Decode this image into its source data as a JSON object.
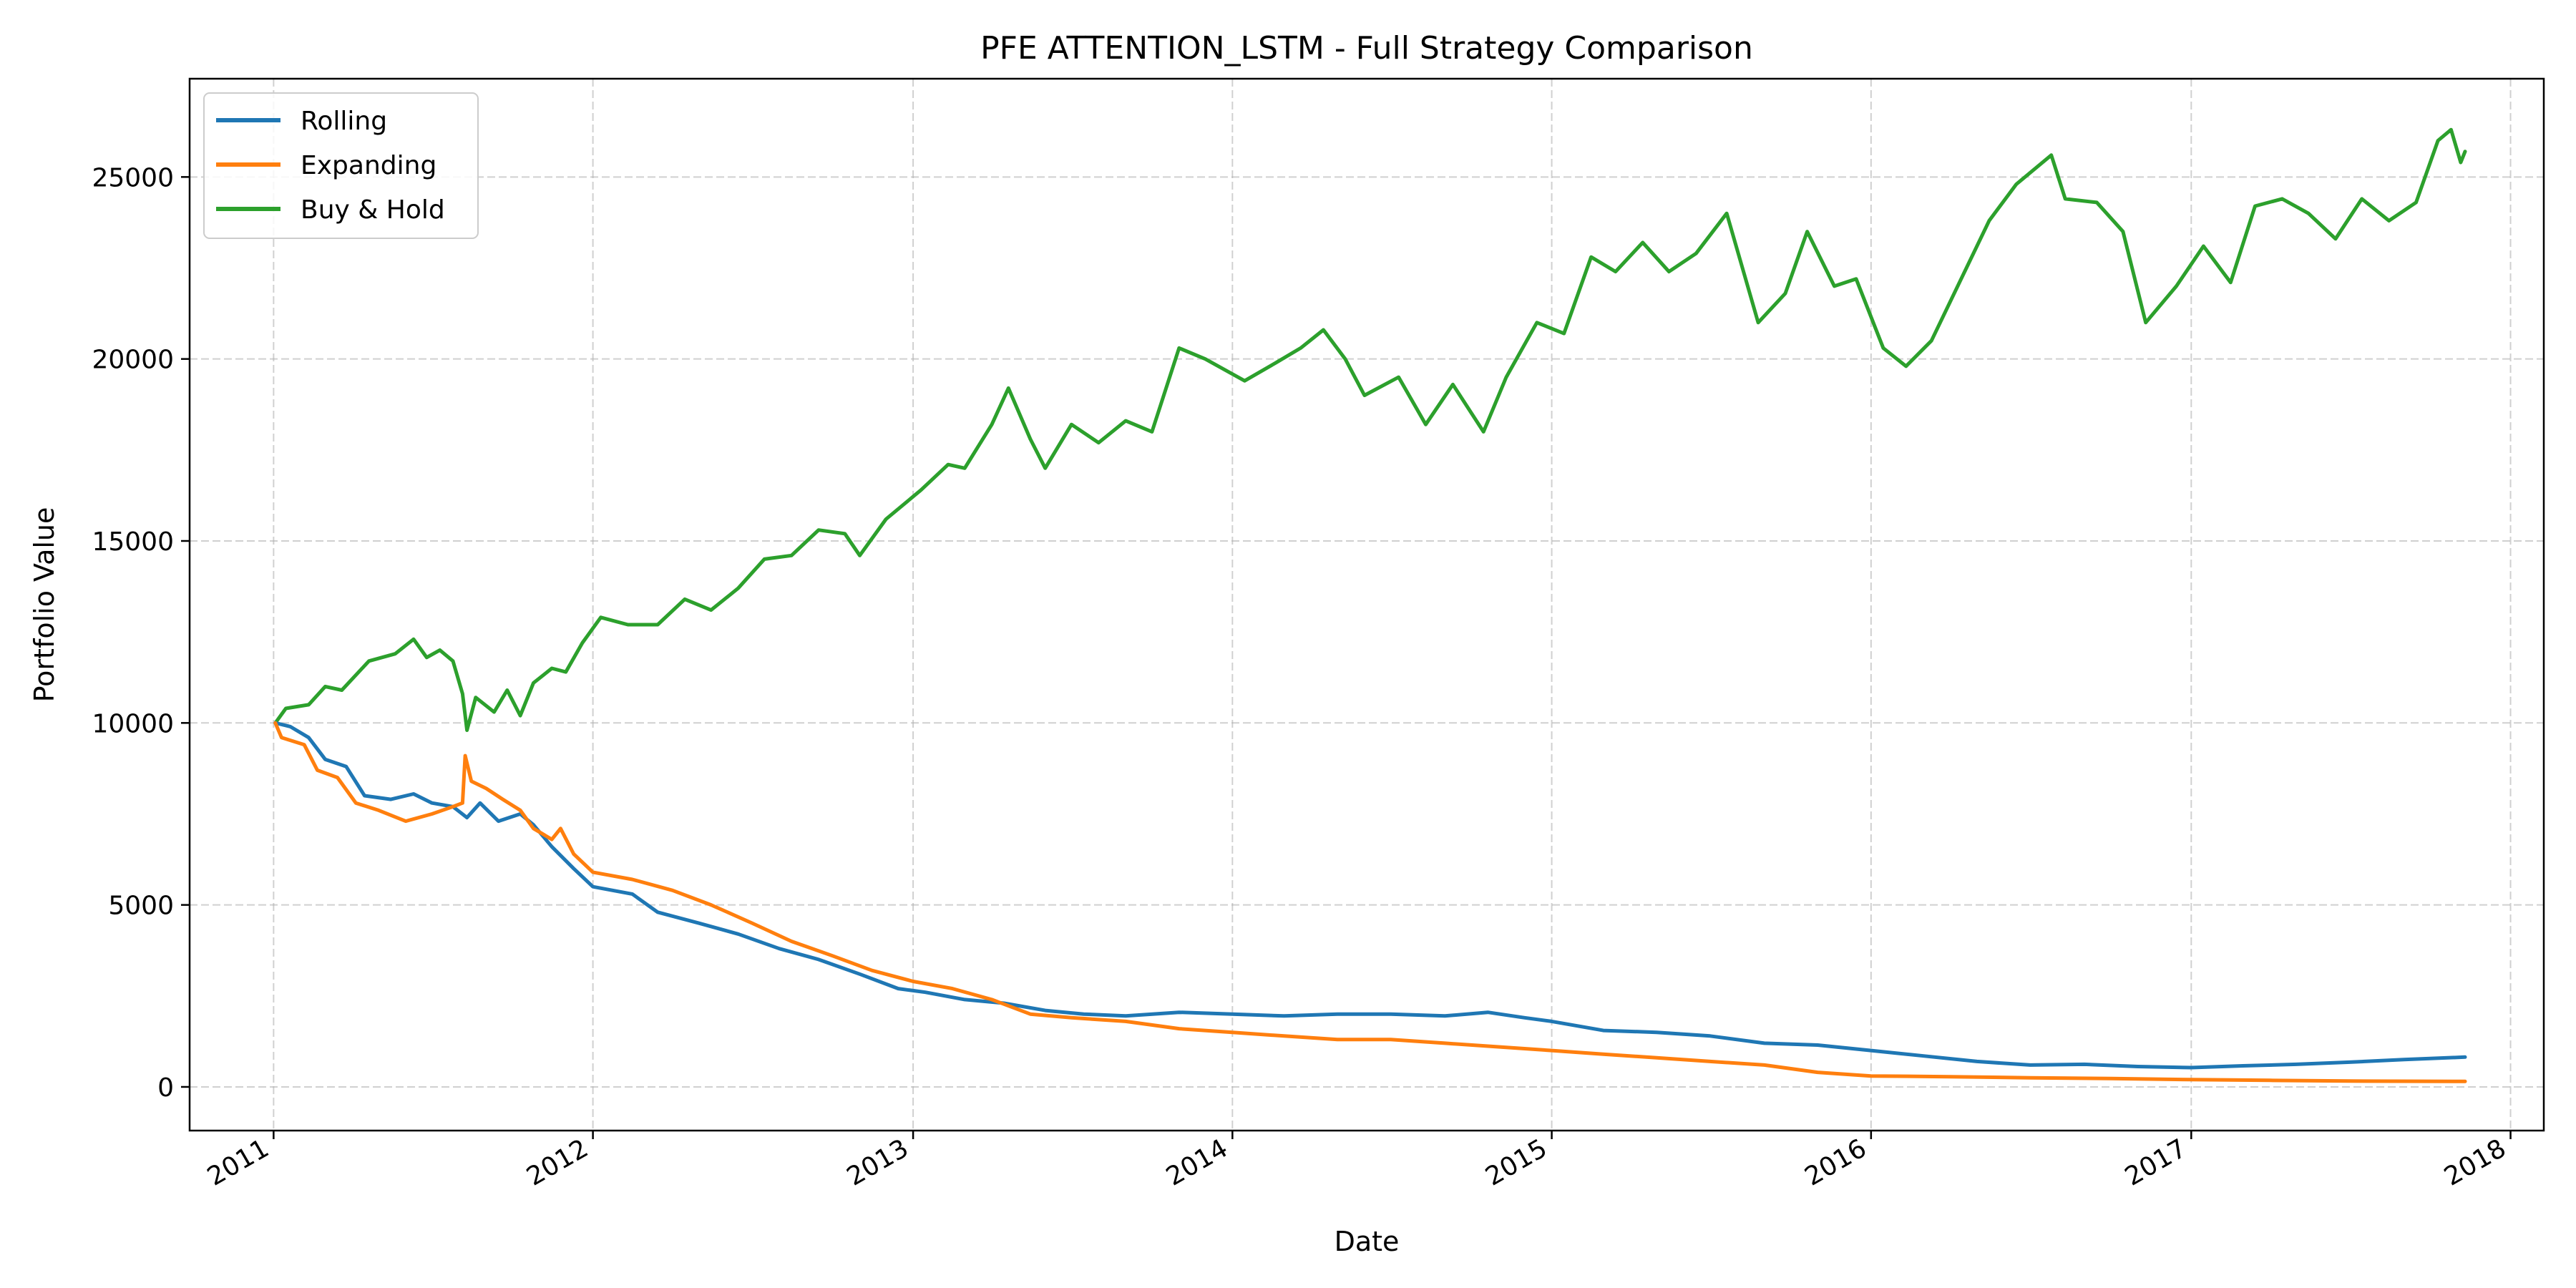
{
  "chart_data": {
    "type": "line",
    "title": "PFE ATTENTION_LSTM - Full Strategy Comparison",
    "xlabel": "Date",
    "ylabel": "Portfolio Value",
    "xlim": [
      "2010-09-27",
      "2018-02-08"
    ],
    "ylim": [
      -1200,
      27700
    ],
    "x_ticks": [
      "2011-01-01",
      "2012-01-01",
      "2013-01-01",
      "2014-01-01",
      "2015-01-01",
      "2016-01-01",
      "2017-01-01",
      "2018-01-01"
    ],
    "x_tick_labels": [
      "2011",
      "2012",
      "2013",
      "2014",
      "2015",
      "2016",
      "2017",
      "2018"
    ],
    "y_ticks": [
      0,
      5000,
      10000,
      15000,
      20000,
      25000
    ],
    "y_tick_labels": [
      "0",
      "5000",
      "10000",
      "15000",
      "20000",
      "25000"
    ],
    "grid": true,
    "legend_position": "top-left",
    "series": [
      {
        "name": "Rolling",
        "color": "#1f77b4",
        "points": [
          [
            "2011-01-03",
            10000
          ],
          [
            "2011-01-20",
            9900
          ],
          [
            "2011-02-10",
            9600
          ],
          [
            "2011-03-01",
            9000
          ],
          [
            "2011-03-25",
            8800
          ],
          [
            "2011-04-15",
            8000
          ],
          [
            "2011-05-15",
            7900
          ],
          [
            "2011-06-10",
            8050
          ],
          [
            "2011-07-01",
            7800
          ],
          [
            "2011-07-25",
            7700
          ],
          [
            "2011-08-10",
            7400
          ],
          [
            "2011-08-25",
            7800
          ],
          [
            "2011-09-15",
            7300
          ],
          [
            "2011-10-10",
            7500
          ],
          [
            "2011-10-25",
            7200
          ],
          [
            "2011-11-15",
            6600
          ],
          [
            "2011-12-10",
            6000
          ],
          [
            "2012-01-01",
            5500
          ],
          [
            "2012-02-15",
            5300
          ],
          [
            "2012-03-15",
            4800
          ],
          [
            "2012-05-01",
            4500
          ],
          [
            "2012-06-15",
            4200
          ],
          [
            "2012-08-01",
            3800
          ],
          [
            "2012-09-15",
            3500
          ],
          [
            "2012-11-01",
            3100
          ],
          [
            "2012-12-15",
            2700
          ],
          [
            "2013-01-15",
            2600
          ],
          [
            "2013-03-01",
            2400
          ],
          [
            "2013-04-15",
            2300
          ],
          [
            "2013-06-01",
            2100
          ],
          [
            "2013-07-15",
            2000
          ],
          [
            "2013-09-01",
            1950
          ],
          [
            "2013-11-01",
            2050
          ],
          [
            "2014-01-01",
            2000
          ],
          [
            "2014-03-01",
            1950
          ],
          [
            "2014-05-01",
            2000
          ],
          [
            "2014-07-01",
            2000
          ],
          [
            "2014-09-01",
            1950
          ],
          [
            "2014-10-20",
            2050
          ],
          [
            "2014-12-01",
            1900
          ],
          [
            "2015-01-01",
            1800
          ],
          [
            "2015-03-01",
            1550
          ],
          [
            "2015-05-01",
            1500
          ],
          [
            "2015-07-01",
            1400
          ],
          [
            "2015-09-01",
            1200
          ],
          [
            "2015-11-01",
            1150
          ],
          [
            "2016-01-01",
            1000
          ],
          [
            "2016-03-01",
            850
          ],
          [
            "2016-05-01",
            700
          ],
          [
            "2016-07-01",
            600
          ],
          [
            "2016-09-01",
            620
          ],
          [
            "2016-11-01",
            560
          ],
          [
            "2017-01-01",
            530
          ],
          [
            "2017-03-01",
            580
          ],
          [
            "2017-05-01",
            620
          ],
          [
            "2017-07-01",
            680
          ],
          [
            "2017-09-01",
            750
          ],
          [
            "2017-11-10",
            820
          ]
        ]
      },
      {
        "name": "Expanding",
        "color": "#ff7f0e",
        "points": [
          [
            "2011-01-03",
            10000
          ],
          [
            "2011-01-10",
            9600
          ],
          [
            "2011-02-05",
            9400
          ],
          [
            "2011-02-20",
            8700
          ],
          [
            "2011-03-15",
            8500
          ],
          [
            "2011-04-05",
            7800
          ],
          [
            "2011-05-01",
            7600
          ],
          [
            "2011-06-01",
            7300
          ],
          [
            "2011-07-01",
            7500
          ],
          [
            "2011-07-25",
            7700
          ],
          [
            "2011-08-05",
            7800
          ],
          [
            "2011-08-08",
            9100
          ],
          [
            "2011-08-15",
            8400
          ],
          [
            "2011-09-01",
            8200
          ],
          [
            "2011-09-20",
            7900
          ],
          [
            "2011-10-10",
            7600
          ],
          [
            "2011-10-25",
            7100
          ],
          [
            "2011-11-15",
            6800
          ],
          [
            "2011-11-25",
            7100
          ],
          [
            "2011-12-10",
            6400
          ],
          [
            "2012-01-01",
            5900
          ],
          [
            "2012-02-15",
            5700
          ],
          [
            "2012-04-01",
            5400
          ],
          [
            "2012-05-15",
            5000
          ],
          [
            "2012-07-01",
            4500
          ],
          [
            "2012-08-15",
            4000
          ],
          [
            "2012-10-01",
            3600
          ],
          [
            "2012-11-15",
            3200
          ],
          [
            "2013-01-01",
            2900
          ],
          [
            "2013-02-15",
            2700
          ],
          [
            "2013-04-01",
            2400
          ],
          [
            "2013-05-15",
            2000
          ],
          [
            "2013-07-01",
            1900
          ],
          [
            "2013-09-01",
            1800
          ],
          [
            "2013-11-01",
            1600
          ],
          [
            "2014-01-01",
            1500
          ],
          [
            "2014-03-01",
            1400
          ],
          [
            "2014-05-01",
            1300
          ],
          [
            "2014-07-01",
            1300
          ],
          [
            "2014-09-01",
            1200
          ],
          [
            "2014-11-01",
            1100
          ],
          [
            "2015-01-01",
            1000
          ],
          [
            "2015-03-01",
            900
          ],
          [
            "2015-05-01",
            800
          ],
          [
            "2015-07-01",
            700
          ],
          [
            "2015-09-01",
            600
          ],
          [
            "2015-11-01",
            400
          ],
          [
            "2016-01-01",
            300
          ],
          [
            "2016-04-01",
            280
          ],
          [
            "2016-07-01",
            250
          ],
          [
            "2016-10-01",
            230
          ],
          [
            "2017-01-01",
            200
          ],
          [
            "2017-04-01",
            180
          ],
          [
            "2017-07-01",
            160
          ],
          [
            "2017-11-10",
            150
          ]
        ]
      },
      {
        "name": "Buy & Hold",
        "color": "#2ca02c",
        "points": [
          [
            "2011-01-03",
            10000
          ],
          [
            "2011-01-15",
            10400
          ],
          [
            "2011-02-10",
            10500
          ],
          [
            "2011-03-01",
            11000
          ],
          [
            "2011-03-20",
            10900
          ],
          [
            "2011-04-20",
            11700
          ],
          [
            "2011-05-20",
            11900
          ],
          [
            "2011-06-10",
            12300
          ],
          [
            "2011-06-25",
            11800
          ],
          [
            "2011-07-10",
            12000
          ],
          [
            "2011-07-25",
            11700
          ],
          [
            "2011-08-05",
            10800
          ],
          [
            "2011-08-10",
            9800
          ],
          [
            "2011-08-20",
            10700
          ],
          [
            "2011-09-10",
            10300
          ],
          [
            "2011-09-25",
            10900
          ],
          [
            "2011-10-10",
            10200
          ],
          [
            "2011-10-25",
            11100
          ],
          [
            "2011-11-15",
            11500
          ],
          [
            "2011-12-01",
            11400
          ],
          [
            "2011-12-20",
            12200
          ],
          [
            "2012-01-10",
            12900
          ],
          [
            "2012-02-10",
            12700
          ],
          [
            "2012-03-15",
            12700
          ],
          [
            "2012-04-15",
            13400
          ],
          [
            "2012-05-15",
            13100
          ],
          [
            "2012-06-15",
            13700
          ],
          [
            "2012-07-15",
            14500
          ],
          [
            "2012-08-15",
            14600
          ],
          [
            "2012-09-15",
            15300
          ],
          [
            "2012-10-15",
            15200
          ],
          [
            "2012-11-01",
            14600
          ],
          [
            "2012-12-01",
            15600
          ],
          [
            "2013-01-10",
            16400
          ],
          [
            "2013-02-10",
            17100
          ],
          [
            "2013-03-01",
            17000
          ],
          [
            "2013-04-01",
            18200
          ],
          [
            "2013-04-20",
            19200
          ],
          [
            "2013-05-15",
            17800
          ],
          [
            "2013-06-01",
            17000
          ],
          [
            "2013-07-01",
            18200
          ],
          [
            "2013-08-01",
            17700
          ],
          [
            "2013-09-01",
            18300
          ],
          [
            "2013-10-01",
            18000
          ],
          [
            "2013-11-01",
            20300
          ],
          [
            "2013-12-01",
            20000
          ],
          [
            "2014-01-15",
            19400
          ],
          [
            "2014-02-20",
            19900
          ],
          [
            "2014-03-20",
            20300
          ],
          [
            "2014-04-15",
            20800
          ],
          [
            "2014-05-10",
            20000
          ],
          [
            "2014-06-01",
            19000
          ],
          [
            "2014-07-10",
            19500
          ],
          [
            "2014-08-10",
            18200
          ],
          [
            "2014-09-10",
            19300
          ],
          [
            "2014-10-15",
            18000
          ],
          [
            "2014-11-10",
            19500
          ],
          [
            "2014-12-15",
            21000
          ],
          [
            "2015-01-15",
            20700
          ],
          [
            "2015-02-15",
            22800
          ],
          [
            "2015-03-15",
            22400
          ],
          [
            "2015-04-15",
            23200
          ],
          [
            "2015-05-15",
            22400
          ],
          [
            "2015-06-15",
            22900
          ],
          [
            "2015-07-20",
            24000
          ],
          [
            "2015-08-25",
            21000
          ],
          [
            "2015-09-25",
            21800
          ],
          [
            "2015-10-20",
            23500
          ],
          [
            "2015-11-20",
            22000
          ],
          [
            "2015-12-15",
            22200
          ],
          [
            "2016-01-15",
            20300
          ],
          [
            "2016-02-10",
            19800
          ],
          [
            "2016-03-10",
            20500
          ],
          [
            "2016-04-15",
            22300
          ],
          [
            "2016-05-15",
            23800
          ],
          [
            "2016-06-15",
            24800
          ],
          [
            "2016-07-25",
            25600
          ],
          [
            "2016-08-10",
            24400
          ],
          [
            "2016-09-15",
            24300
          ],
          [
            "2016-10-15",
            23500
          ],
          [
            "2016-11-10",
            21000
          ],
          [
            "2016-12-15",
            22000
          ],
          [
            "2017-01-15",
            23100
          ],
          [
            "2017-02-15",
            22100
          ],
          [
            "2017-03-15",
            24200
          ],
          [
            "2017-04-15",
            24400
          ],
          [
            "2017-05-15",
            24000
          ],
          [
            "2017-06-15",
            23300
          ],
          [
            "2017-07-15",
            24400
          ],
          [
            "2017-08-15",
            23800
          ],
          [
            "2017-09-15",
            24300
          ],
          [
            "2017-10-10",
            26000
          ],
          [
            "2017-10-25",
            26300
          ],
          [
            "2017-11-05",
            25400
          ],
          [
            "2017-11-10",
            25700
          ]
        ]
      }
    ]
  }
}
